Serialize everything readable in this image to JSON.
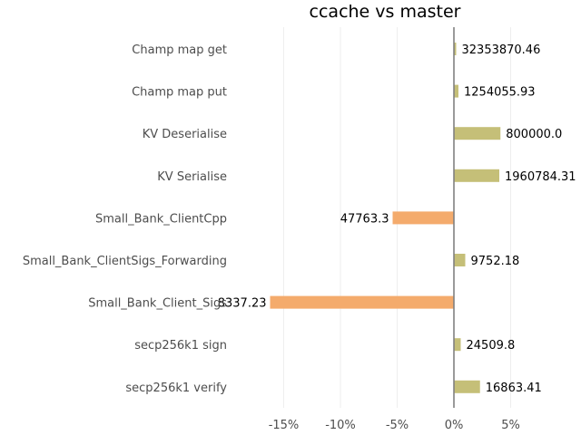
{
  "chart_data": {
    "type": "bar",
    "orientation": "horizontal",
    "title": "ccache vs master",
    "xlabel": "",
    "ylabel": "",
    "xlim": [
      -17,
      5.5
    ],
    "xticks": [
      -15,
      -10,
      -5,
      0,
      5
    ],
    "xtick_labels": [
      "-15%",
      "-10%",
      "-5%",
      "0%",
      "5%"
    ],
    "grid": "vertical",
    "categories": [
      "Champ map get",
      "Champ map put",
      "KV Deserialise",
      "KV Serialise",
      "Small_Bank_ClientCpp",
      "Small_Bank_ClientSigs_Forwarding",
      "Small_Bank_Client_Sigs",
      "secp256k1 sign",
      "secp256k1 verify"
    ],
    "values": [
      0.2,
      0.4,
      4.1,
      4.0,
      -5.4,
      1.0,
      -16.2,
      0.6,
      2.3
    ],
    "data_labels": [
      "32353870.46",
      "1254055.93",
      "800000.0",
      "1960784.31",
      "47763.3",
      "9752.18",
      "8337.23",
      "24509.8",
      "16863.41"
    ],
    "colors": {
      "positive": "#c5bf78",
      "negative": "#f4ab6c",
      "zero_line": "#808080",
      "grid": "#eeeeee"
    }
  }
}
